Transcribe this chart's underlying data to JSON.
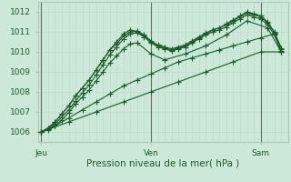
{
  "bg_color": "#cce8d8",
  "grid_color_major": "#aac8b8",
  "grid_color_minor": "#bbdacc",
  "line_color": "#1a5c2a",
  "ylim": [
    1005.5,
    1012.5
  ],
  "yticks": [
    1006,
    1007,
    1008,
    1009,
    1010,
    1011,
    1012
  ],
  "xlabel": "Pression niveau de la mer( hPa )",
  "xlabel_fontsize": 7.5,
  "tick_label_fontsize": 6.5,
  "day_labels": [
    "Jeu",
    "Ven",
    "Sam"
  ],
  "day_positions": [
    0,
    32,
    64
  ],
  "xlim": [
    -1,
    72
  ],
  "series": [
    {
      "x": [
        0,
        2,
        4,
        6,
        8,
        10,
        12,
        14,
        16,
        18,
        20,
        22,
        24,
        26,
        28,
        30,
        32,
        34,
        36,
        38,
        40,
        42,
        44,
        46,
        48,
        50,
        52,
        54,
        56,
        58,
        60,
        62,
        64,
        66,
        68,
        70
      ],
      "y": [
        1006.0,
        1006.2,
        1006.5,
        1006.9,
        1007.3,
        1007.8,
        1008.2,
        1008.6,
        1009.1,
        1009.6,
        1010.1,
        1010.5,
        1010.9,
        1011.1,
        1011.0,
        1010.8,
        1010.5,
        1010.3,
        1010.2,
        1010.1,
        1010.2,
        1010.3,
        1010.5,
        1010.7,
        1010.9,
        1011.1,
        1011.2,
        1011.4,
        1011.6,
        1011.8,
        1012.0,
        1011.9,
        1011.8,
        1011.5,
        1011.0,
        1010.2
      ]
    },
    {
      "x": [
        0,
        2,
        4,
        6,
        8,
        10,
        12,
        14,
        16,
        18,
        20,
        22,
        24,
        26,
        28,
        30,
        32,
        34,
        36,
        38,
        40,
        42,
        44,
        46,
        48,
        50,
        52,
        54,
        56,
        58,
        60,
        62,
        64,
        66,
        68,
        70
      ],
      "y": [
        1006.0,
        1006.2,
        1006.5,
        1006.9,
        1007.3,
        1007.8,
        1008.2,
        1008.6,
        1009.1,
        1009.6,
        1010.1,
        1010.4,
        1010.8,
        1011.0,
        1011.05,
        1010.85,
        1010.55,
        1010.35,
        1010.25,
        1010.15,
        1010.25,
        1010.35,
        1010.55,
        1010.75,
        1010.95,
        1011.1,
        1011.2,
        1011.35,
        1011.55,
        1011.75,
        1011.95,
        1011.85,
        1011.75,
        1011.45,
        1010.95,
        1010.15
      ]
    },
    {
      "x": [
        0,
        2,
        4,
        6,
        8,
        10,
        12,
        14,
        16,
        18,
        20,
        22,
        24,
        26,
        28,
        30,
        32,
        34,
        36,
        38,
        40,
        42,
        44,
        46,
        48,
        50,
        52,
        54,
        56,
        58,
        60,
        62,
        64,
        66,
        68,
        70
      ],
      "y": [
        1006.0,
        1006.15,
        1006.4,
        1006.75,
        1007.1,
        1007.55,
        1007.95,
        1008.35,
        1008.85,
        1009.35,
        1009.85,
        1010.25,
        1010.65,
        1010.9,
        1010.95,
        1010.75,
        1010.45,
        1010.25,
        1010.15,
        1010.05,
        1010.15,
        1010.25,
        1010.45,
        1010.65,
        1010.85,
        1011.0,
        1011.1,
        1011.25,
        1011.45,
        1011.65,
        1011.85,
        1011.75,
        1011.65,
        1011.35,
        1010.85,
        1010.05
      ]
    },
    {
      "x": [
        0,
        2,
        4,
        6,
        8,
        10,
        12,
        14,
        16,
        18,
        20,
        22,
        24,
        26,
        28,
        32,
        36,
        42,
        48,
        54,
        60,
        66,
        70
      ],
      "y": [
        1006.0,
        1006.1,
        1006.3,
        1006.6,
        1006.95,
        1007.4,
        1007.75,
        1008.1,
        1008.55,
        1009.0,
        1009.45,
        1009.8,
        1010.15,
        1010.4,
        1010.45,
        1009.9,
        1009.6,
        1009.9,
        1010.3,
        1010.85,
        1011.55,
        1011.2,
        1010.0
      ]
    },
    {
      "x": [
        0,
        4,
        8,
        12,
        16,
        20,
        24,
        28,
        32,
        36,
        40,
        44,
        48,
        52,
        56,
        60,
        64,
        68,
        70
      ],
      "y": [
        1006.0,
        1006.3,
        1006.7,
        1007.1,
        1007.5,
        1007.9,
        1008.3,
        1008.6,
        1008.9,
        1009.2,
        1009.5,
        1009.7,
        1009.9,
        1010.1,
        1010.3,
        1010.5,
        1010.7,
        1010.9,
        1010.0
      ]
    },
    {
      "x": [
        0,
        8,
        16,
        24,
        32,
        40,
        48,
        56,
        64,
        70
      ],
      "y": [
        1006.0,
        1006.5,
        1007.0,
        1007.5,
        1008.0,
        1008.5,
        1009.0,
        1009.5,
        1010.0,
        1010.0
      ]
    }
  ],
  "n_minor_vlines": 72
}
